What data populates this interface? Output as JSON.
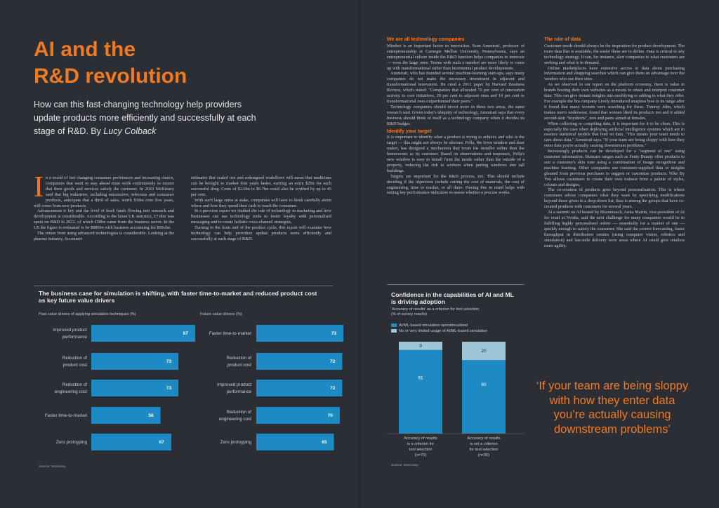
{
  "colors": {
    "accent": "#f07a22",
    "bar": "#1d8ac4",
    "bar_light": "#9ec5d6",
    "background": "#2b2f35"
  },
  "headline": {
    "line1": "AI and the",
    "line2": "R&D revolution"
  },
  "standfirst": {
    "text": "How can this fast-changing technology help providers update products more efficiently and successfully at each stage of R&D. By ",
    "author": "Lucy Colback"
  },
  "body": {
    "col1": [
      {
        "dropcap": "I",
        "text": "n a world of fast changing consumer preferences and increasing choice, companies that want to stay ahead must work continuously to ensure that their goods and services satisfy the customer. In 2023 McKinsey said that big industries, including automotive, telecoms and consumer products, anticipate that a third of sales, worth $30tn over five years, will come from new products."
      },
      {
        "text": "Advancement is key and the level of fresh funds flowing into research and development is considerable. According to the latest UK statistics, £7.6bn was spent on R&D in 2022, of which £50bn came from the business sector. In the US the figure is estimated to be $886bn with business accounting for $69obn."
      },
      {
        "text": "The return from using advanced technologies is considerable. Looking at the pharma industry, Accenture"
      }
    ],
    "col2": [
      {
        "text": "estimates that scaled use and redesigned workflows will mean that medicines can be brought to market four years faster, earning an extra $2bn for each successful drug. Costs of $2.6bn to $6.7bn could also be scythed by up to 45 per cent."
      },
      {
        "text": "With such large sums at stake, companies will have to think carefully about where and how they spend their cash to reach the consumer."
      },
      {
        "text": "In a previous report we studied the role of technology in marketing and how businesses can use technology tools to foster loyalty with personalised messaging and to create holistic cross-channel strategies."
      },
      {
        "text": "Turning to the front end of the product cycle, this report will examine how technology can help providers update products more efficiently and successfully at each stage of R&D."
      }
    ],
    "col3_heading": "We are all technology companies",
    "col3": [
      {
        "text": "Mindset is an important factor in innovation. Sean Ammirati, professor of entrepreneurship at Carnegie Mellon University, Pennsylvania, says an entrepreneurial culture inside the R&D function helps companies to innovate — even the large ones. Teams with such a mindset are more likely to come up with transformational rather than incremental product developments."
      },
      {
        "text": "Ammirati, who has founded several machine-learning start-ups, says many companies do not make the necessary investment in adjacent and transformational innovation. He cited a 2012 paper by Harvard Business Review, which stated: \"Companies that allocated 70 per cent of innovation activity to core initiatives, 20 per cent to adjacent ones and 10 per cent to transformational ones outperformed their peers.\""
      },
      {
        "text": "Technology companies should invest more in these two areas, the same research said. Given today's ubiquity of technology, Ammirati says that every business should think of itself as a technology company when it decides its R&D budget."
      }
    ],
    "col3_heading2": "Identify your target",
    "col3b": [
      {
        "text": "It is important to identify what a product is trying to achieve and who is the target — this might not always be obvious. Pella, the Iowa window and door maker, has designed a mechanism that treats the installer rather than the homeowner as its customer. Based on observations and responses, Pella's new window is easy to install from the inside rather than the outside of a property, reducing the risk to workers when putting windows into tall buildings."
      },
      {
        "text": "Targets are important for the R&D process, too. This should include deciding if the objectives include cutting the cost of materials, the cost of engineering, time to market, or all three. Having this in mind helps with setting key performance indicators to assess whether a process works."
      }
    ],
    "col4_heading": "The role of data",
    "col4": [
      {
        "text": "Customer needs should always be the inspiration for product development. The more data that is available, the easier these are to define. Data is critical to any technology strategy. It can, for instance, alert companies to what customers are seeking and what is in demand."
      },
      {
        "text": "Online marketplaces have extensive access to data about purchasing information and shopping searches which can give them an advantage over the vendors who use their sites."
      },
      {
        "text": "As we observed in our report on the platform economy, there is value in brands hosting their own websites as a means to retain and interpret customer data. This can give instant insights into modifying or adding to what they offer. For example the bra company Lively introduced strapless bras to its range after it found that many women were searching for these. Tommy John, which makes men's underwear, found that women liked its products too and it added second-skin \"boyshorts\", tees and pants aimed at females."
      },
      {
        "text": "When collecting or compiling data, it is important for it to be clean. This is especially the case when deploying artificial intelligence systems which are in essence statistical models that feed on data. \"This means your team needs to care about data,\" Ammirati says. \"If your team are being sloppy with how they enter data you're actually causing downstream problems.\""
      },
      {
        "text": "Increasingly products can be developed for a \"segment of one\" using customer information. Skincare ranges such as Fenty Beauty offer products to suit a customer's skin tone using a combination of image recognition and machine learning. Other companies use consumer-supplied data or insights gleaned from previous purchases to suggest or customise products. Nike By You allows customers to create their own trainers from a palette of styles, colours and designs."
      },
      {
        "text": "The co-creation of products goes beyond personalisation. This is where customers advise companies what they want by specifying modifications beyond those given in a drop-down list, Ikea is among the groups that have co-created products with customers for several years."
      },
      {
        "text": "At a summit on AI hosted by Bloomreach, Anita Martin, vice-president of AI for retail at Nvidia, said the next challenge for many companies would be in fulfilling highly personalised orders — essentially for a market of one — quickly enough to satisfy the consumer. She said the correct forecasting, faster throughput in distribution centres (using computer vision, robotics and simulation) and last-mile delivery were areas where AI could give retailers more agility."
      }
    ]
  },
  "chart_data": [
    {
      "type": "bar",
      "orientation": "horizontal",
      "title": "The business case for simulation is shifting, with faster time-to-market and reduced product cost as key future value drivers",
      "panels": [
        {
          "subtitle": "Past value drivers of applying simulation techniques (%)",
          "categories": [
            [
              "Improved product",
              "performance"
            ],
            [
              "Reduction of",
              "product cost"
            ],
            [
              "Reduction of",
              "engineering cost"
            ],
            [
              "Faster time-to-market"
            ],
            [
              "Zero protoyping"
            ]
          ],
          "values": [
            87,
            73,
            73,
            58,
            67
          ]
        },
        {
          "subtitle": "Future value drivers (%)",
          "categories": [
            [
              "Faster time-to-market"
            ],
            [
              "Reduction of",
              "product cost"
            ],
            [
              "Improved product",
              "performance"
            ],
            [
              "Reduction of",
              "engineering cost"
            ],
            [
              "Zero protoyping"
            ]
          ],
          "values": [
            73,
            72,
            72,
            70,
            65
          ]
        }
      ],
      "xlim": [
        0,
        100
      ],
      "source": "Source: McKinsey"
    },
    {
      "type": "bar",
      "orientation": "vertical",
      "stacked": true,
      "title": "Confidence in the capabilities of AI and ML is driving adoption",
      "subtitle_lines": [
        "'Accuracy of results' as a criterion for tool selection",
        "(% of survey results)"
      ],
      "legend": [
        "AI/ML-based simulation operationalised",
        "No or very limited usage of AI/ML-based simulation"
      ],
      "categories": [
        [
          "Accuracy of results",
          "is a criterion for",
          "tool selection",
          "(n=70)"
        ],
        [
          "Accuracy of results",
          "is not a criterion",
          "for tool selection",
          "(n=30)"
        ]
      ],
      "series": [
        {
          "name": "AI/ML-based simulation operationalised",
          "values": [
            91,
            80
          ]
        },
        {
          "name": "No or very limited usage of AI/ML-based simulation",
          "values": [
            9,
            20
          ]
        }
      ],
      "ylim": [
        0,
        100
      ],
      "source": "Source: McKinsey"
    }
  ],
  "pull_quote": "‘If your team are being sloppy with how they enter data you’re actually causing downstream problems’"
}
